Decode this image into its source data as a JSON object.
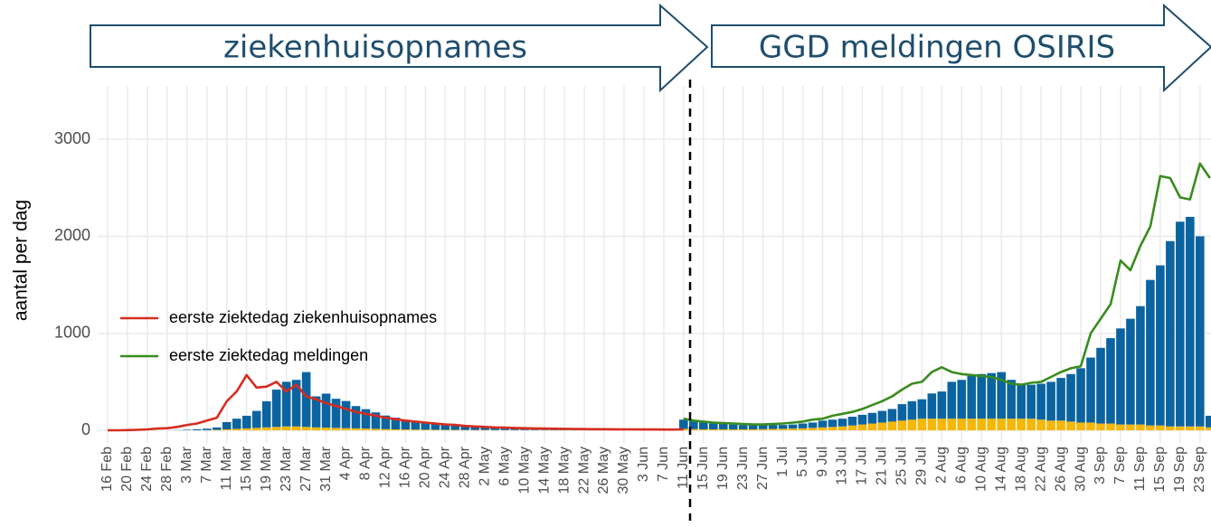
{
  "chart_data": {
    "type": "combo",
    "annotations": [
      "ziekenhuisopnames",
      "GGD meldingen OSIRIS"
    ],
    "ylabel": "aantal per dag",
    "categories": [
      "16 Feb",
      null,
      "20 Feb",
      null,
      "24 Feb",
      null,
      "28 Feb",
      null,
      "3 Mar",
      null,
      "7 Mar",
      null,
      "11 Mar",
      null,
      "15 Mar",
      null,
      "19 Mar",
      null,
      "23 Mar",
      null,
      "27 Mar",
      null,
      "31 Mar",
      null,
      "4 Apr",
      null,
      "8 Apr",
      null,
      "12 Apr",
      null,
      "16 Apr",
      null,
      "20 Apr",
      null,
      "24 Apr",
      null,
      "28 Apr",
      null,
      "2 May",
      null,
      "6 May",
      null,
      "10 May",
      null,
      "14 May",
      null,
      "18 May",
      null,
      "22 May",
      null,
      "26 May",
      null,
      "30 May",
      null,
      "3 Jun",
      null,
      "7 Jun",
      null,
      "11 Jun",
      null,
      "15 Jun",
      null,
      "19 Jun",
      null,
      "23 Jun",
      null,
      "27 Jun",
      null,
      "1 Jul",
      null,
      "5 Jul",
      null,
      "9 Jul",
      null,
      "13 Jul",
      null,
      "17 Jul",
      null,
      "21 Jul",
      null,
      "25 Jul",
      null,
      "29 Jul",
      null,
      "2 Aug",
      null,
      "6 Aug",
      null,
      "10 Aug",
      null,
      "14 Aug",
      null,
      "18 Aug",
      null,
      "22 Aug",
      null,
      "26 Aug",
      null,
      "30 Aug",
      null,
      "3 Sep",
      null,
      "7 Sep",
      null,
      "11 Sep",
      null,
      "15 Sep",
      null,
      "19 Sep",
      null,
      "23 Sep",
      null
    ],
    "ylim": [
      -130,
      3550
    ],
    "yticks": [
      0,
      1000,
      2000,
      3000
    ],
    "grid": true,
    "legend": "left",
    "series": [
      {
        "name": "eerste ziektedag ziekenhuisopnames",
        "type": "line",
        "color": "#d62d20",
        "values": [
          0,
          0,
          2,
          5,
          10,
          18,
          22,
          35,
          55,
          70,
          100,
          130,
          300,
          400,
          570,
          440,
          450,
          500,
          400,
          470,
          350,
          320,
          280,
          250,
          220,
          190,
          170,
          150,
          130,
          115,
          100,
          90,
          80,
          70,
          60,
          55,
          45,
          40,
          35,
          30,
          28,
          25,
          22,
          20,
          18,
          16,
          15,
          14,
          13,
          12,
          12,
          11,
          10,
          10,
          9,
          9,
          8,
          8,
          10,
          null,
          null,
          null,
          null,
          null,
          null,
          null,
          null,
          null,
          null,
          null,
          null,
          null,
          null,
          null,
          null,
          null,
          null,
          null,
          null,
          null,
          null,
          null,
          null,
          null,
          null,
          null,
          null,
          null,
          null,
          null,
          null,
          null,
          null,
          null,
          null,
          null,
          null,
          null,
          null,
          null,
          null,
          null,
          null,
          null,
          null,
          null,
          null,
          null,
          null,
          null,
          null,
          null
        ]
      },
      {
        "name": "eerste ziektedag meldingen",
        "type": "line",
        "color": "#3a8c1f",
        "values": [
          null,
          null,
          null,
          null,
          null,
          null,
          null,
          null,
          null,
          null,
          null,
          null,
          null,
          null,
          null,
          null,
          null,
          null,
          null,
          null,
          null,
          null,
          null,
          null,
          null,
          null,
          null,
          null,
          null,
          null,
          null,
          null,
          null,
          null,
          null,
          null,
          null,
          null,
          null,
          null,
          null,
          null,
          null,
          null,
          null,
          null,
          null,
          null,
          null,
          null,
          null,
          null,
          null,
          null,
          null,
          null,
          null,
          null,
          120,
          100,
          90,
          80,
          75,
          70,
          65,
          60,
          60,
          65,
          70,
          80,
          90,
          110,
          120,
          150,
          170,
          190,
          220,
          260,
          300,
          350,
          420,
          480,
          500,
          600,
          650,
          600,
          580,
          570,
          560,
          550,
          520,
          480,
          470,
          490,
          500,
          550,
          600,
          640,
          660,
          1000,
          1150,
          1300,
          1750,
          1650,
          1900,
          2100,
          2620,
          2600,
          2400,
          2380,
          2750,
          2600
        ]
      },
      {
        "type": "bar",
        "color": "#f5b70a",
        "values": [
          0,
          0,
          0,
          0,
          0,
          0,
          0,
          0,
          1,
          1,
          2,
          5,
          10,
          15,
          20,
          25,
          30,
          35,
          40,
          40,
          35,
          30,
          28,
          25,
          22,
          20,
          18,
          15,
          12,
          10,
          9,
          8,
          7,
          6,
          5,
          5,
          4,
          4,
          4,
          3,
          3,
          3,
          3,
          3,
          3,
          2,
          2,
          2,
          2,
          2,
          2,
          2,
          2,
          2,
          2,
          2,
          2,
          2,
          15,
          12,
          10,
          10,
          10,
          10,
          10,
          10,
          12,
          14,
          16,
          18,
          20,
          25,
          30,
          35,
          40,
          50,
          60,
          70,
          80,
          90,
          100,
          110,
          120,
          120,
          120,
          120,
          120,
          120,
          120,
          120,
          120,
          120,
          120,
          120,
          110,
          100,
          100,
          90,
          80,
          80,
          70,
          70,
          60,
          60,
          60,
          50,
          50,
          40,
          40,
          40,
          40,
          30
        ]
      },
      {
        "type": "bar",
        "color": "#0b64a0",
        "values": [
          0,
          0,
          0,
          0,
          0,
          0,
          0,
          2,
          5,
          10,
          15,
          25,
          75,
          105,
          130,
          175,
          270,
          385,
          460,
          480,
          565,
          320,
          350,
          300,
          280,
          230,
          200,
          170,
          140,
          120,
          100,
          90,
          75,
          65,
          55,
          45,
          40,
          35,
          30,
          27,
          25,
          22,
          20,
          18,
          16,
          15,
          14,
          13,
          12,
          11,
          10,
          10,
          9,
          9,
          8,
          8,
          8,
          8,
          95,
          88,
          70,
          60,
          55,
          50,
          45,
          45,
          43,
          41,
          39,
          42,
          50,
          55,
          70,
          75,
          80,
          90,
          100,
          110,
          120,
          130,
          170,
          190,
          200,
          260,
          280,
          380,
          400,
          440,
          460,
          470,
          480,
          400,
          360,
          350,
          370,
          400,
          440,
          490,
          560,
          670,
          780,
          880,
          990,
          1090,
          1220,
          1500,
          1650,
          1910,
          2110,
          2160,
          1960,
          120
        ]
      }
    ]
  }
}
